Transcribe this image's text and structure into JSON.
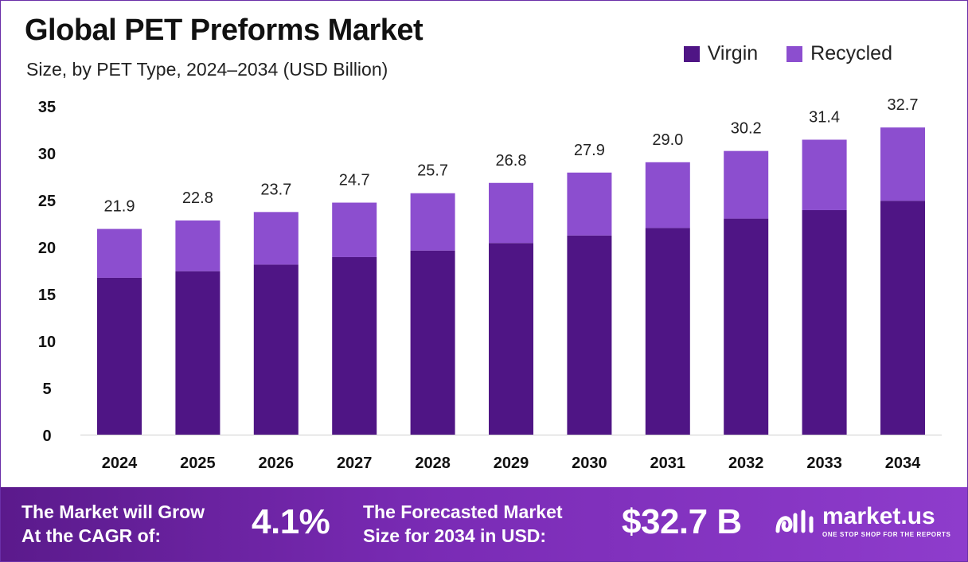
{
  "header": {
    "title": "Global PET Preforms Market",
    "subtitle": "Size, by PET Type, 2024–2034 (USD Billion)"
  },
  "legend": [
    {
      "label": "Virgin",
      "color": "#4f1585"
    },
    {
      "label": "Recycled",
      "color": "#8c4ecf"
    }
  ],
  "chart_data": {
    "type": "bar",
    "stacked": true,
    "categories": [
      "2024",
      "2025",
      "2026",
      "2027",
      "2028",
      "2029",
      "2030",
      "2031",
      "2032",
      "2033",
      "2034"
    ],
    "series": [
      {
        "name": "Virgin",
        "color": "#4f1585",
        "values": [
          16.7,
          17.4,
          18.1,
          18.9,
          19.6,
          20.4,
          21.2,
          22.0,
          23.0,
          23.9,
          24.9
        ]
      },
      {
        "name": "Recycled",
        "color": "#8c4ecf",
        "values": [
          5.2,
          5.4,
          5.6,
          5.8,
          6.1,
          6.4,
          6.7,
          7.0,
          7.2,
          7.5,
          7.8
        ]
      }
    ],
    "totals": [
      "21.9",
      "22.8",
      "23.7",
      "24.7",
      "25.7",
      "26.8",
      "27.9",
      "29.0",
      "30.2",
      "31.4",
      "32.7"
    ],
    "yticks": [
      0,
      5,
      10,
      15,
      20,
      25,
      30,
      35
    ],
    "ylim": [
      0,
      35
    ],
    "grid": false,
    "legend_position": "top-right"
  },
  "footer": {
    "cagr_label_line1": "The Market will Grow",
    "cagr_label_line2": "At the CAGR of:",
    "cagr_value": "4.1%",
    "forecast_label_line1": "The Forecasted Market",
    "forecast_label_line2": "Size for 2034 in USD:",
    "forecast_value": "$32.7 B",
    "brand_name": "market.us",
    "brand_tagline": "ONE STOP SHOP FOR THE REPORTS"
  }
}
